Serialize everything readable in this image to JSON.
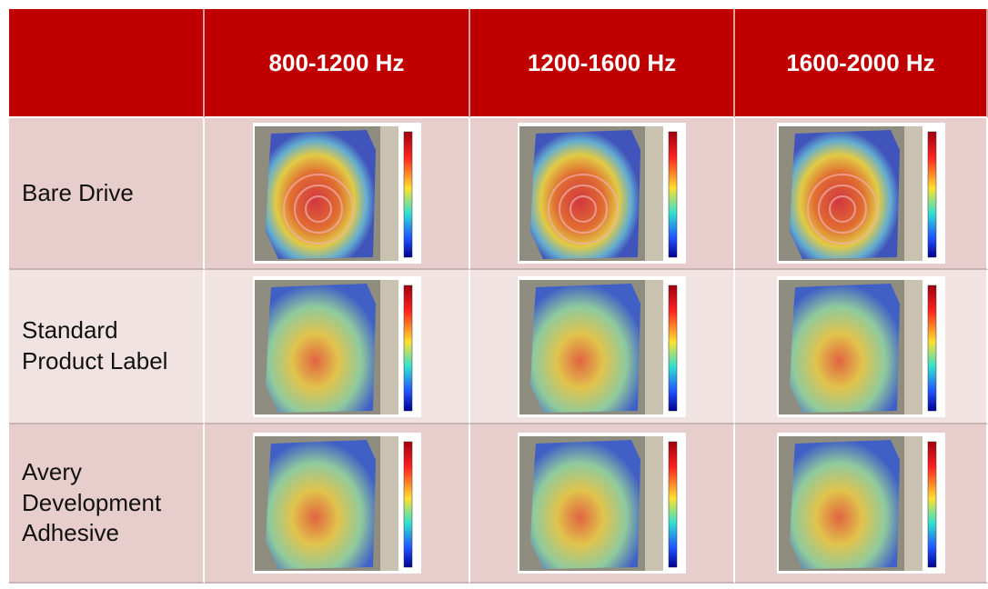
{
  "table": {
    "columns": [
      "800-1200 Hz",
      "1200-1600 Hz",
      "1600-2000 Hz"
    ],
    "rows": [
      "Bare Drive",
      "Standard Product Label",
      "Avery Development Adhesive"
    ]
  }
}
